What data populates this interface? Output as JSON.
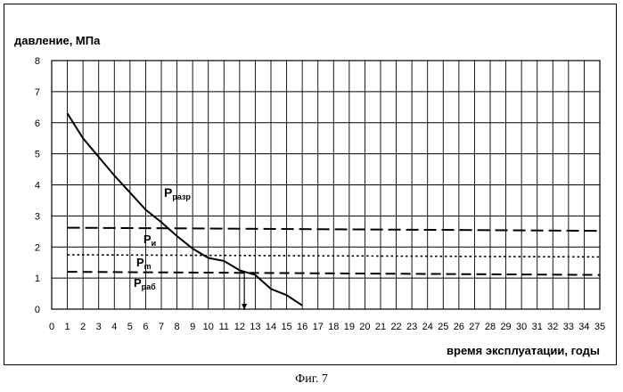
{
  "caption": "Фиг. 7",
  "chart_data": {
    "type": "line",
    "ylabel": "давление, МПа",
    "xlabel": "время эксплуатации, годы",
    "xlim": [
      0,
      35
    ],
    "ylim": [
      0,
      8
    ],
    "x_ticks": [
      0,
      1,
      2,
      3,
      4,
      5,
      6,
      7,
      8,
      9,
      10,
      11,
      12,
      13,
      14,
      15,
      16,
      17,
      18,
      19,
      20,
      21,
      22,
      23,
      24,
      25,
      26,
      27,
      28,
      29,
      30,
      31,
      32,
      33,
      34,
      35
    ],
    "y_ticks": [
      0,
      1,
      2,
      3,
      4,
      5,
      6,
      7,
      8
    ],
    "grid": true,
    "series": [
      {
        "name": "Pразр",
        "label_main": "P",
        "label_sub": "разр",
        "style": "solid",
        "x": [
          1,
          2,
          3,
          4,
          5,
          6,
          7,
          8,
          9,
          10,
          11,
          12,
          13,
          14,
          15,
          16
        ],
        "y": [
          6.3,
          5.5,
          4.9,
          4.3,
          3.75,
          3.2,
          2.8,
          2.35,
          1.95,
          1.65,
          1.55,
          1.25,
          1.1,
          0.65,
          0.45,
          0.12
        ]
      },
      {
        "name": "Pи",
        "label_main": "P",
        "label_sub": "и",
        "style": "long-dash",
        "x": [
          1,
          35
        ],
        "y": [
          2.62,
          2.52
        ]
      },
      {
        "name": "Pm",
        "label_main": "P",
        "label_sub": "m",
        "style": "dotted",
        "x": [
          1,
          35
        ],
        "y": [
          1.75,
          1.68
        ]
      },
      {
        "name": "Pраб",
        "label_main": "P",
        "label_sub": "раб",
        "style": "dashed",
        "x": [
          1,
          35
        ],
        "y": [
          1.2,
          1.1
        ]
      }
    ],
    "marker": {
      "type": "arrow",
      "x": 12.3,
      "y_from": 1.2,
      "y_to": 0
    }
  }
}
